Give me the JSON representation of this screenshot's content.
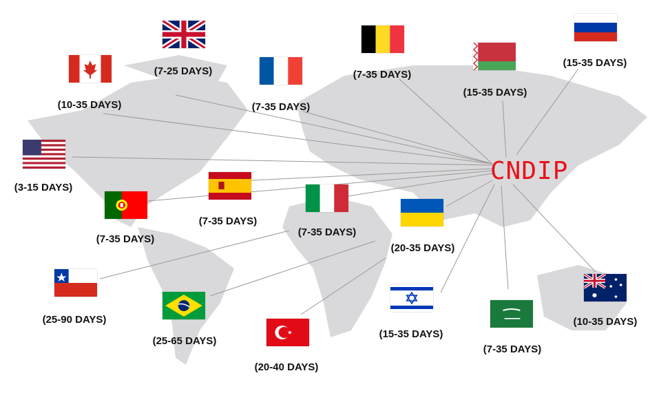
{
  "brand": {
    "text": "CNDIP",
    "color": "#e8121a"
  },
  "map_color": "#d9d9db",
  "destinations": [
    {
      "country": "United Kingdom",
      "flag": "uk-flag",
      "days": "(7-25 DAYS)"
    },
    {
      "country": "Canada",
      "flag": "canada-flag",
      "days": "(10-35 DAYS)"
    },
    {
      "country": "France",
      "flag": "france-flag",
      "days": "(7-35 DAYS)"
    },
    {
      "country": "Belgium",
      "flag": "belgium-flag",
      "days": "(7-35 DAYS)"
    },
    {
      "country": "Belarus",
      "flag": "belarus-flag",
      "days": "(15-35 DAYS)"
    },
    {
      "country": "Russia",
      "flag": "russia-flag",
      "days": "(15-35 DAYS)"
    },
    {
      "country": "United States",
      "flag": "usa-flag",
      "days": "(3-15 DAYS)"
    },
    {
      "country": "Spain",
      "flag": "spain-flag",
      "days": "(7-35 DAYS)"
    },
    {
      "country": "Portugal",
      "flag": "portugal-flag",
      "days": "(7-35 DAYS)"
    },
    {
      "country": "Italy",
      "flag": "italy-flag",
      "days": "(7-35 DAYS)"
    },
    {
      "country": "Ukraine",
      "flag": "ukraine-flag",
      "days": "(20-35 DAYS)"
    },
    {
      "country": "Chile",
      "flag": "chile-flag",
      "days": "(25-90 DAYS)"
    },
    {
      "country": "Brazil",
      "flag": "brazil-flag",
      "days": "(25-65 DAYS)"
    },
    {
      "country": "Turkey",
      "flag": "turkey-flag",
      "days": "(20-40 DAYS)"
    },
    {
      "country": "Israel",
      "flag": "israel-flag",
      "days": "(15-35 DAYS)"
    },
    {
      "country": "Saudi Arabia",
      "flag": "saudi-flag",
      "days": "(7-35 DAYS)"
    },
    {
      "country": "Australia",
      "flag": "australia-flag",
      "days": "(10-35 DAYS)"
    }
  ]
}
